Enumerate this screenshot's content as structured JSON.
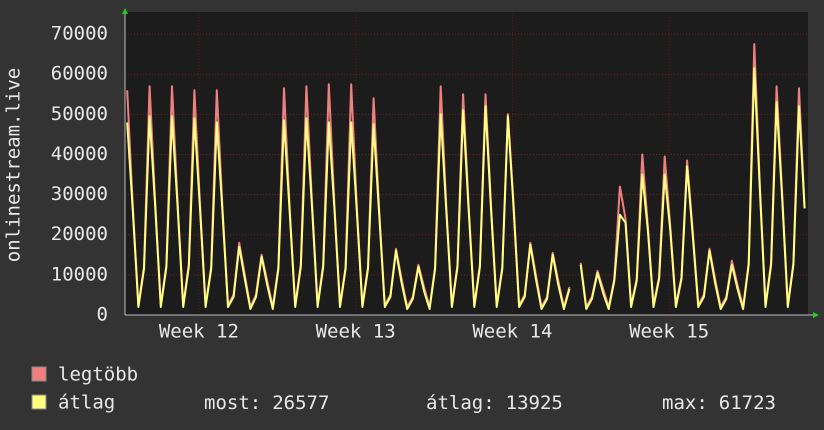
{
  "chart_data": {
    "type": "line",
    "ylabel": "onlinestream.live",
    "xlim": [
      0,
      30.5
    ],
    "ylim": [
      0,
      75000
    ],
    "yticks": [
      0,
      10000,
      20000,
      30000,
      40000,
      50000,
      60000,
      70000
    ],
    "xticks": [
      {
        "value": 3.3,
        "label": "Week 12"
      },
      {
        "value": 10.3,
        "label": "Week 13"
      },
      {
        "value": 17.3,
        "label": "Week 14"
      },
      {
        "value": 24.3,
        "label": "Week 15"
      }
    ],
    "grid": true,
    "x": [
      0.1,
      0.35,
      0.6,
      0.85,
      1.1,
      1.35,
      1.6,
      1.85,
      2.1,
      2.35,
      2.6,
      2.85,
      3.1,
      3.35,
      3.6,
      3.85,
      4.1,
      4.35,
      4.6,
      4.85,
      5.1,
      5.35,
      5.6,
      5.85,
      6.1,
      6.35,
      6.6,
      6.85,
      7.1,
      7.35,
      7.6,
      7.85,
      8.1,
      8.35,
      8.6,
      8.85,
      9.1,
      9.35,
      9.6,
      9.85,
      10.1,
      10.35,
      10.6,
      10.85,
      11.1,
      11.35,
      11.6,
      11.85,
      12.1,
      12.35,
      12.6,
      12.85,
      13.1,
      13.35,
      13.6,
      13.85,
      14.1,
      14.35,
      14.6,
      14.85,
      15.1,
      15.35,
      15.6,
      15.85,
      16.1,
      16.35,
      16.6,
      16.85,
      17.1,
      17.35,
      17.6,
      17.85,
      18.1,
      18.35,
      18.6,
      18.85,
      19.1,
      19.35,
      19.6,
      19.85,
      20.1,
      20.35,
      20.6,
      20.85,
      21.1,
      21.35,
      21.6,
      21.85,
      22.1,
      22.35,
      22.6,
      22.85,
      23.1,
      23.35,
      23.6,
      23.85,
      24.1,
      24.35,
      24.6,
      24.85,
      25.1,
      25.35,
      25.6,
      25.85,
      26.1,
      26.35,
      26.6,
      26.85,
      27.1,
      27.35,
      27.6,
      27.85,
      28.1,
      28.35,
      28.6,
      28.85,
      29.1,
      29.35,
      29.6,
      29.85,
      30.1,
      30.35
    ],
    "series": [
      {
        "name": "legtöbb",
        "color": "#f08080",
        "values": [
          56000,
          27000,
          2500,
          12000,
          57000,
          28000,
          2500,
          12500,
          57000,
          28000,
          2500,
          12500,
          56000,
          27500,
          2500,
          12000,
          56000,
          27000,
          2500,
          5000,
          18000,
          10000,
          2000,
          5000,
          15000,
          8500,
          2000,
          12000,
          56500,
          27000,
          2500,
          12500,
          57000,
          28000,
          2500,
          12500,
          57500,
          27500,
          2500,
          12000,
          57500,
          27000,
          2500,
          12000,
          54000,
          26000,
          2500,
          5000,
          16500,
          9000,
          2000,
          4500,
          12500,
          7000,
          2000,
          12000,
          57000,
          27000,
          2500,
          12500,
          55000,
          27000,
          2500,
          12500,
          55000,
          27000,
          2500,
          12000,
          50000,
          28000,
          2500,
          5000,
          18000,
          10000,
          2000,
          4500,
          15500,
          8500,
          2000,
          7000,
          null,
          13000,
          2000,
          4500,
          11000,
          6500,
          2000,
          9000,
          32000,
          24000,
          2500,
          9000,
          40000,
          22000,
          2500,
          9500,
          39500,
          22000,
          2500,
          9500,
          38500,
          21000,
          2500,
          5000,
          16500,
          9000,
          2000,
          4500,
          13500,
          7500,
          2000,
          13000,
          67500,
          32000,
          2500,
          13000,
          57000,
          30000,
          2500,
          13000,
          56500,
          26577
        ]
      },
      {
        "name": "átlag",
        "color": "#ffff80",
        "values": [
          48000,
          26000,
          2000,
          11500,
          49500,
          27000,
          2000,
          12000,
          49500,
          27000,
          2000,
          12000,
          49000,
          26500,
          2000,
          11500,
          48000,
          26000,
          2000,
          4500,
          17000,
          9000,
          1500,
          4500,
          14500,
          7500,
          1500,
          11500,
          48500,
          26000,
          2000,
          12000,
          49000,
          27000,
          2000,
          12000,
          48000,
          26500,
          2000,
          11500,
          48000,
          26000,
          2000,
          11500,
          47500,
          25000,
          2000,
          4500,
          16000,
          8000,
          1500,
          4000,
          12000,
          6000,
          1500,
          11500,
          50000,
          26000,
          2000,
          12000,
          51000,
          26000,
          2000,
          12000,
          52000,
          26000,
          2000,
          11500,
          49500,
          27000,
          2000,
          4500,
          17500,
          9000,
          1500,
          4000,
          15000,
          7500,
          1500,
          6500,
          null,
          12500,
          1500,
          4000,
          10500,
          5500,
          1500,
          8500,
          25000,
          23000,
          2000,
          8500,
          35000,
          21000,
          2000,
          9000,
          35000,
          21000,
          2000,
          9000,
          37000,
          20000,
          2000,
          4500,
          16000,
          8000,
          1500,
          4000,
          12500,
          6500,
          1500,
          12500,
          61500,
          31000,
          2000,
          12500,
          53000,
          29000,
          2000,
          12500,
          52000,
          26577
        ]
      }
    ],
    "stats": [
      {
        "label": "most:",
        "value": 26577
      },
      {
        "label": "átlag:",
        "value": 13925
      },
      {
        "label": "max:",
        "value": 61723
      }
    ]
  }
}
